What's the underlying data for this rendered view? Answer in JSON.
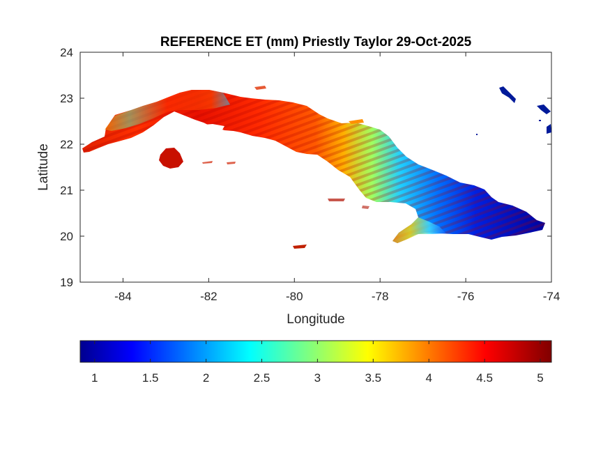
{
  "map": {
    "title": "REFERENCE ET (mm) Priestly Taylor 29-Oct-2025",
    "xlabel": "Longitude",
    "ylabel": "Latitude",
    "x_ticks": [
      "-84",
      "-82",
      "-80",
      "-78",
      "-76",
      "-74"
    ],
    "y_ticks": [
      "24",
      "23",
      "22",
      "21",
      "20",
      "19"
    ],
    "x_range": [
      -85,
      -74
    ],
    "y_range": [
      19,
      24
    ],
    "colorbar": {
      "colormap": "jet",
      "range": [
        0.87,
        5.1
      ],
      "ticks": [
        "1",
        "1.5",
        "2",
        "2.5",
        "3",
        "3.5",
        "4",
        "4.5",
        "5"
      ]
    },
    "colors": {
      "dark_red": "#800000",
      "red": "#ff0000",
      "orange": "#ff8000",
      "yellow": "#ffff00",
      "cyan": "#00ffff",
      "blue": "#0000ff",
      "dark_blue": "#00008f"
    }
  }
}
